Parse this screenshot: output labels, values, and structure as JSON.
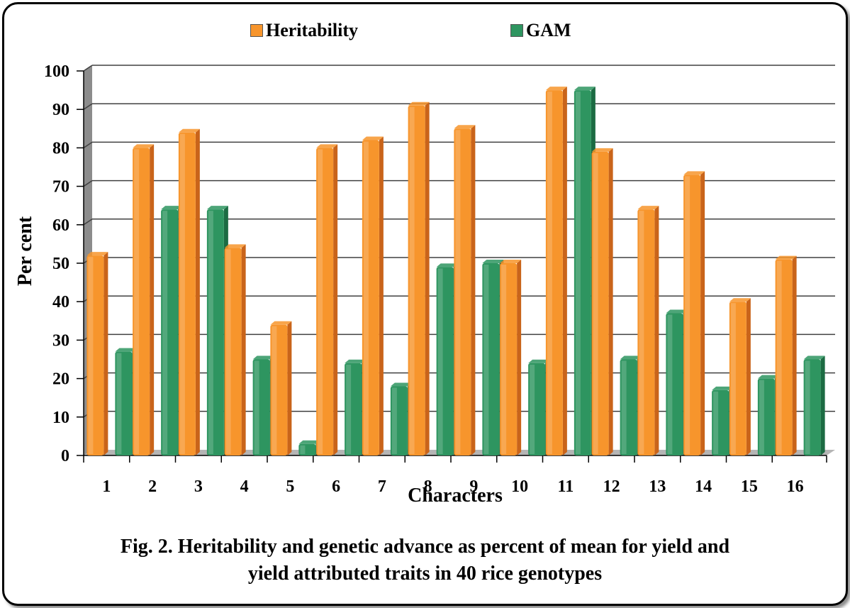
{
  "colors": {
    "heritability": "#F7952C",
    "heritability_side": "#C9641A",
    "gam": "#2E9560",
    "gam_side": "#1C6B43",
    "gridline": "#404040",
    "wall": "#8C8C8C"
  },
  "legend": {
    "items": [
      {
        "label": "Heritability",
        "color": "#F7952C"
      },
      {
        "label": "GAM",
        "color": "#2E9560"
      }
    ]
  },
  "caption": {
    "line1": "Fig. 2. Heritability and genetic advance as percent of mean for yield and",
    "line2": "yield attributed traits in 40 rice genotypes"
  },
  "chart_data": {
    "type": "bar",
    "title": "",
    "xlabel": "Characters",
    "ylabel": "Per cent",
    "ylim": [
      0,
      100
    ],
    "y_ticks": [
      0,
      10,
      20,
      30,
      40,
      50,
      60,
      70,
      80,
      90,
      100
    ],
    "grid": true,
    "legend_position": "top",
    "categories": [
      "1",
      "2",
      "3",
      "4",
      "5",
      "6",
      "7",
      "8",
      "9",
      "10",
      "11",
      "12",
      "13",
      "14",
      "15",
      "16"
    ],
    "series": [
      {
        "name": "Heritability",
        "values": [
          52,
          80,
          84,
          54,
          34,
          80,
          82,
          91,
          85,
          50,
          95,
          79,
          64,
          73,
          40,
          51
        ]
      },
      {
        "name": "GAM",
        "values": [
          27,
          64,
          64,
          25,
          3,
          24,
          18,
          49,
          50,
          24,
          95,
          25,
          37,
          17,
          20,
          25
        ]
      }
    ]
  }
}
